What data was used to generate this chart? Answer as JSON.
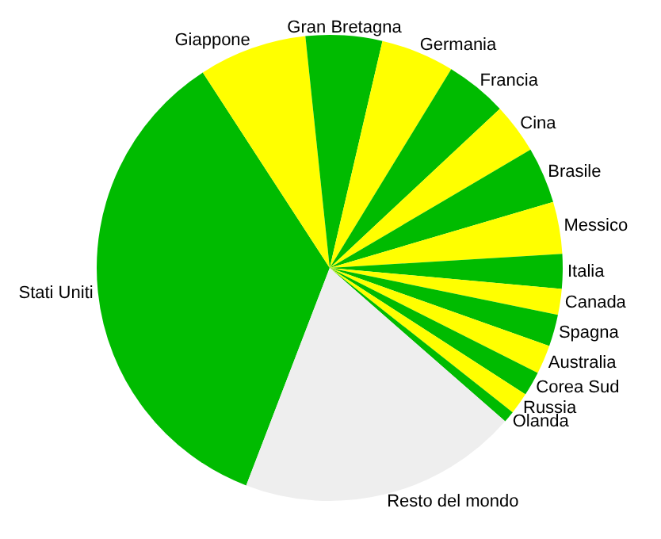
{
  "chart_data": {
    "type": "pie",
    "categories": [
      "Stati Uniti",
      "Giappone",
      "Gran Bretagna",
      "Germania",
      "Francia",
      "Cina",
      "Brasile",
      "Messico",
      "Italia",
      "Canada",
      "Spagna",
      "Australia",
      "Corea Sud",
      "Russia",
      "Olanda",
      "Resto del mondo"
    ],
    "values": [
      35,
      7.5,
      5.3,
      5.1,
      4.3,
      3.5,
      3.9,
      3.6,
      2.4,
      1.8,
      2.2,
      2.0,
      1.7,
      1.5,
      0.8,
      19.4
    ],
    "colors": [
      "#00bb00",
      "#ffff00",
      "#00bb00",
      "#ffff00",
      "#00bb00",
      "#ffff00",
      "#00bb00",
      "#ffff00",
      "#00bb00",
      "#ffff00",
      "#00bb00",
      "#ffff00",
      "#00bb00",
      "#ffff00",
      "#00bb00",
      "#eeeeee"
    ],
    "legend": false
  }
}
